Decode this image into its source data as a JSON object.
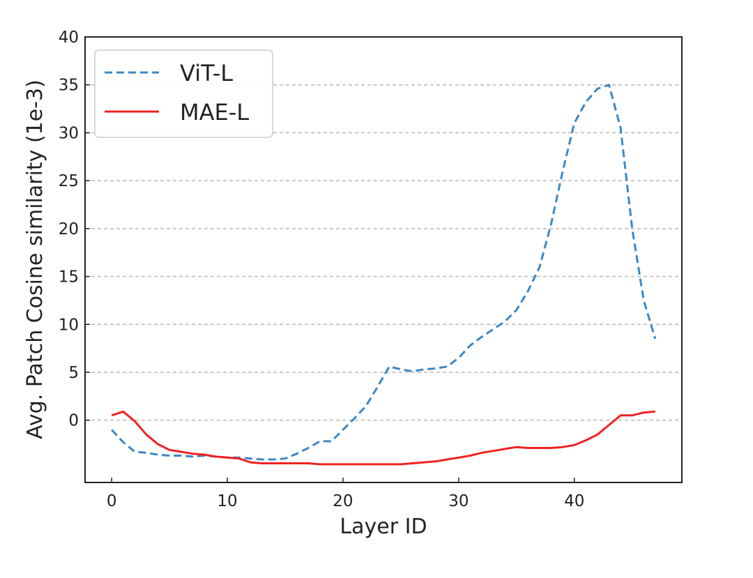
{
  "chart_data": {
    "type": "line",
    "xlabel": "Layer ID",
    "ylabel": "Avg. Patch Cosine similarity (1e-3)",
    "xlim": [
      -2.3,
      49.3
    ],
    "ylim": [
      -6.5,
      40
    ],
    "xticks": [
      0,
      10,
      20,
      30,
      40
    ],
    "yticks": [
      0,
      5,
      10,
      15,
      20,
      25,
      30,
      35,
      40
    ],
    "grid": "horizontal dashed",
    "legend_position": "top-left",
    "series": [
      {
        "name": "ViT-L",
        "color": "#3b88c6",
        "style": "dashed",
        "x": [
          0,
          1,
          2,
          3,
          4,
          5,
          6,
          7,
          8,
          9,
          10,
          11,
          12,
          13,
          14,
          15,
          16,
          17,
          18,
          19,
          20,
          21,
          22,
          23,
          24,
          25,
          26,
          27,
          28,
          29,
          30,
          31,
          32,
          33,
          34,
          35,
          36,
          37,
          38,
          39,
          40,
          41,
          42,
          43,
          44,
          45,
          46,
          47
        ],
        "values": [
          -1.0,
          -2.3,
          -3.3,
          -3.4,
          -3.6,
          -3.7,
          -3.7,
          -3.8,
          -3.7,
          -3.8,
          -3.9,
          -3.9,
          -4.0,
          -4.1,
          -4.1,
          -4.0,
          -3.5,
          -2.9,
          -2.2,
          -2.2,
          -1.0,
          0.2,
          1.5,
          3.5,
          5.6,
          5.3,
          5.1,
          5.3,
          5.4,
          5.6,
          6.5,
          7.8,
          8.7,
          9.5,
          10.3,
          11.5,
          13.5,
          16.0,
          20.5,
          26.0,
          31.0,
          33.2,
          34.6,
          35.0,
          30.5,
          20.0,
          12.5,
          8.5
        ]
      },
      {
        "name": "MAE-L",
        "color": "#ee2222",
        "style": "solid",
        "x": [
          0,
          1,
          2,
          3,
          4,
          5,
          6,
          7,
          8,
          9,
          10,
          11,
          12,
          13,
          14,
          15,
          16,
          17,
          18,
          19,
          20,
          21,
          22,
          23,
          24,
          25,
          26,
          27,
          28,
          29,
          30,
          31,
          32,
          33,
          34,
          35,
          36,
          37,
          38,
          39,
          40,
          41,
          42,
          43,
          44,
          45,
          46,
          47
        ],
        "values": [
          0.5,
          0.9,
          -0.1,
          -1.5,
          -2.5,
          -3.1,
          -3.3,
          -3.5,
          -3.6,
          -3.8,
          -3.9,
          -4.0,
          -4.4,
          -4.5,
          -4.5,
          -4.5,
          -4.5,
          -4.5,
          -4.6,
          -4.6,
          -4.6,
          -4.6,
          -4.6,
          -4.6,
          -4.6,
          -4.6,
          -4.5,
          -4.4,
          -4.3,
          -4.1,
          -3.9,
          -3.7,
          -3.4,
          -3.2,
          -3.0,
          -2.8,
          -2.9,
          -2.9,
          -2.9,
          -2.8,
          -2.6,
          -2.1,
          -1.5,
          -0.5,
          0.5,
          0.5,
          0.8,
          0.9
        ]
      }
    ]
  }
}
